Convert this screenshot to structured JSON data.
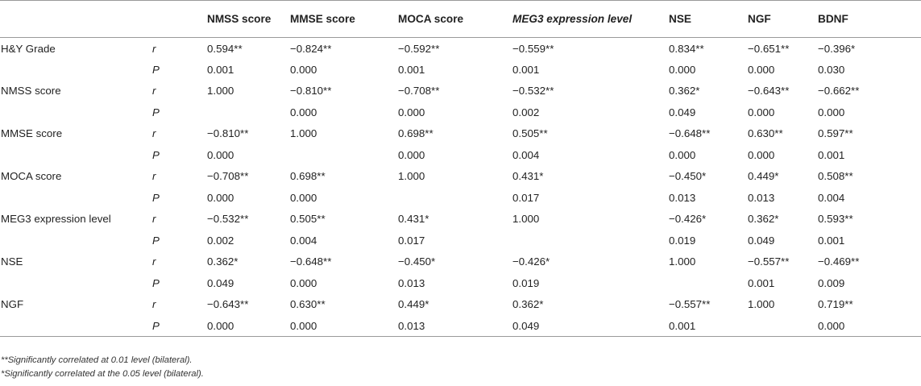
{
  "table": {
    "headers": [
      "",
      "",
      "NMSS score",
      "MMSE score",
      "MOCA score",
      "MEG3 expression level",
      "NSE",
      "NGF",
      "BDNF"
    ],
    "rows": [
      {
        "label": "H&Y Grade",
        "r": [
          "0.594**",
          "−0.824**",
          "−0.592**",
          "−0.559**",
          "0.834**",
          "−0.651**",
          "−0.396*"
        ],
        "p": [
          "0.001",
          "0.000",
          "0.001",
          "0.001",
          "0.000",
          "0.000",
          "0.030"
        ]
      },
      {
        "label": "NMSS score",
        "r": [
          "1.000",
          "−0.810**",
          "−0.708**",
          "−0.532**",
          "0.362*",
          "−0.643**",
          "−0.662**"
        ],
        "p": [
          "",
          "0.000",
          "0.000",
          "0.002",
          "0.049",
          "0.000",
          "0.000"
        ]
      },
      {
        "label": "MMSE score",
        "r": [
          "−0.810**",
          "1.000",
          "0.698**",
          "0.505**",
          "−0.648**",
          "0.630**",
          "0.597**"
        ],
        "p": [
          "0.000",
          "",
          "0.000",
          "0.004",
          "0.000",
          "0.000",
          "0.001"
        ]
      },
      {
        "label": "MOCA score",
        "r": [
          "−0.708**",
          "0.698**",
          "1.000",
          "0.431*",
          "−0.450*",
          "0.449*",
          "0.508**"
        ],
        "p": [
          "0.000",
          "0.000",
          "",
          "0.017",
          "0.013",
          "0.013",
          "0.004"
        ]
      },
      {
        "label": "MEG3 expression level",
        "r": [
          "−0.532**",
          "0.505**",
          "0.431*",
          "1.000",
          "−0.426*",
          "0.362*",
          "0.593**"
        ],
        "p": [
          "0.002",
          "0.004",
          "0.017",
          "",
          "0.019",
          "0.049",
          "0.001"
        ]
      },
      {
        "label": "NSE",
        "r": [
          "0.362*",
          "−0.648**",
          "−0.450*",
          "−0.426*",
          "1.000",
          "−0.557**",
          "−0.469**"
        ],
        "p": [
          "0.049",
          "0.000",
          "0.013",
          "0.019",
          "",
          "0.001",
          "0.009"
        ]
      },
      {
        "label": "NGF",
        "r": [
          "−0.643**",
          "0.630**",
          "0.449*",
          "0.362*",
          "−0.557**",
          "1.000",
          "0.719**"
        ],
        "p": [
          "0.000",
          "0.000",
          "0.013",
          "0.049",
          "0.001",
          "",
          "0.000"
        ]
      }
    ],
    "stat_labels": {
      "r": "r",
      "p": "P"
    }
  },
  "footnotes": [
    "**Significantly correlated at 0.01 level (bilateral).",
    "*Significantly correlated at the 0.05 level (bilateral)."
  ]
}
